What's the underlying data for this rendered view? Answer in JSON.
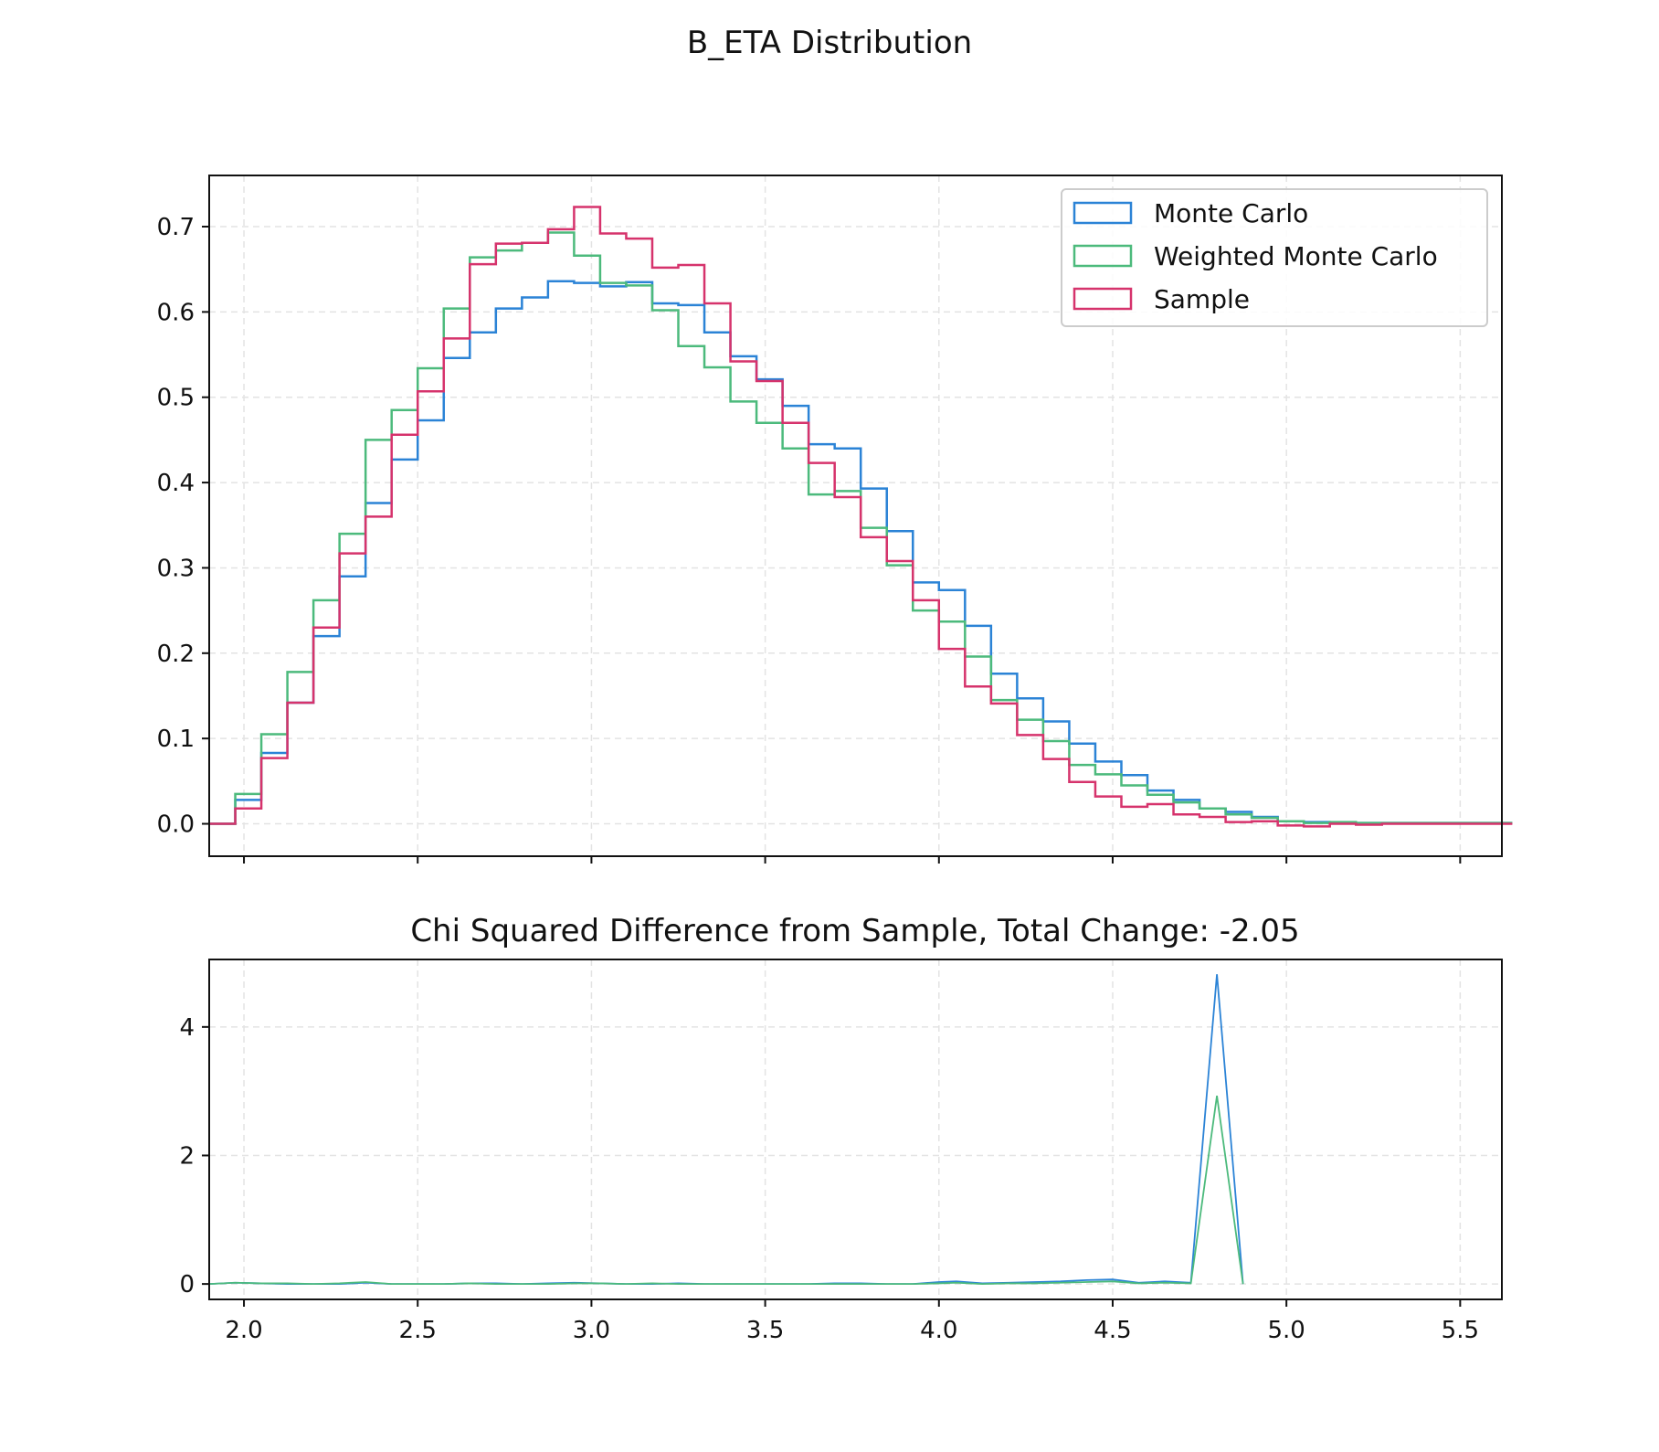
{
  "title": "B_ETA Distribution",
  "colors": {
    "monte_carlo": "#2b83d6",
    "weighted_monte_carlo": "#4cba7c",
    "sample": "#d6336c",
    "grid": "#e3e3e3"
  },
  "chart_data": [
    {
      "type": "histogram-step",
      "title": "",
      "xlim": [
        1.9,
        5.62
      ],
      "ylim": [
        -0.038,
        0.76
      ],
      "xticks": [
        2.0,
        2.5,
        3.0,
        3.5,
        4.0,
        4.5,
        5.0,
        5.5
      ],
      "yticks": [
        0.0,
        0.1,
        0.2,
        0.3,
        0.4,
        0.5,
        0.6,
        0.7
      ],
      "ytick_labels": [
        "0.0",
        "0.1",
        "0.2",
        "0.3",
        "0.4",
        "0.5",
        "0.6",
        "0.7"
      ],
      "grid": true,
      "legend_position": "top-right",
      "bin_start": 1.9,
      "bin_width": 0.075,
      "series": [
        {
          "name": "Monte Carlo",
          "key": "monte_carlo",
          "values": [
            0.0,
            0.028,
            0.083,
            0.142,
            0.22,
            0.29,
            0.376,
            0.427,
            0.473,
            0.546,
            0.576,
            0.604,
            0.617,
            0.636,
            0.634,
            0.63,
            0.635,
            0.61,
            0.608,
            0.576,
            0.548,
            0.521,
            0.49,
            0.445,
            0.44,
            0.393,
            0.343,
            0.283,
            0.274,
            0.232,
            0.176,
            0.147,
            0.12,
            0.094,
            0.073,
            0.057,
            0.039,
            0.028,
            0.018,
            0.014,
            0.008,
            0.003,
            0.002,
            0.001,
            0.001,
            0.001,
            0.001,
            0.001,
            0.001,
            0.001
          ]
        },
        {
          "name": "Weighted Monte Carlo",
          "key": "weighted_monte_carlo",
          "values": [
            0.0,
            0.035,
            0.105,
            0.178,
            0.262,
            0.34,
            0.45,
            0.485,
            0.534,
            0.604,
            0.664,
            0.672,
            0.681,
            0.693,
            0.666,
            0.634,
            0.631,
            0.602,
            0.56,
            0.535,
            0.495,
            0.47,
            0.44,
            0.386,
            0.39,
            0.347,
            0.303,
            0.25,
            0.237,
            0.196,
            0.145,
            0.122,
            0.097,
            0.069,
            0.058,
            0.045,
            0.034,
            0.025,
            0.018,
            0.011,
            0.007,
            0.003,
            0.001,
            0.002,
            0.001,
            0.001,
            0.001,
            0.001,
            0.001,
            0.001
          ]
        },
        {
          "name": "Sample",
          "key": "sample",
          "values": [
            0.0,
            0.018,
            0.077,
            0.142,
            0.23,
            0.317,
            0.36,
            0.456,
            0.507,
            0.569,
            0.656,
            0.68,
            0.681,
            0.697,
            0.723,
            0.692,
            0.686,
            0.652,
            0.655,
            0.61,
            0.542,
            0.519,
            0.47,
            0.423,
            0.383,
            0.336,
            0.308,
            0.262,
            0.205,
            0.161,
            0.141,
            0.104,
            0.076,
            0.049,
            0.032,
            0.02,
            0.023,
            0.011,
            0.008,
            0.002,
            0.003,
            -0.002,
            -0.003,
            0.0,
            -0.001,
            0.0,
            0.0,
            0.0,
            0.0,
            0.0
          ]
        }
      ]
    },
    {
      "type": "line",
      "title": "Chi Squared Difference from Sample, Total Change: -2.05",
      "xlim": [
        1.9,
        5.62
      ],
      "ylim": [
        -0.24,
        5.05
      ],
      "xticks": [
        2.0,
        2.5,
        3.0,
        3.5,
        4.0,
        4.5,
        5.0,
        5.5
      ],
      "xtick_labels": [
        "2.0",
        "2.5",
        "3.0",
        "3.5",
        "4.0",
        "4.5",
        "5.0",
        "5.5"
      ],
      "yticks": [
        0,
        2,
        4
      ],
      "ytick_labels": [
        "0",
        "2",
        "4"
      ],
      "grid": true,
      "x": [
        1.9,
        1.975,
        2.05,
        2.125,
        2.2,
        2.275,
        2.35,
        2.425,
        2.5,
        2.575,
        2.65,
        2.725,
        2.8,
        2.875,
        2.95,
        3.025,
        3.1,
        3.175,
        3.25,
        3.325,
        3.4,
        3.475,
        3.55,
        3.625,
        3.7,
        3.775,
        3.85,
        3.925,
        4.0,
        4.05,
        4.125,
        4.2,
        4.275,
        4.35,
        4.425,
        4.5,
        4.575,
        4.65,
        4.725,
        4.8,
        4.875
      ],
      "series": [
        {
          "key": "monte_carlo",
          "values": [
            0.0,
            0.02,
            0.01,
            0.0,
            0.0,
            0.0,
            0.02,
            0.0,
            0.0,
            0.0,
            0.01,
            0.01,
            0.0,
            0.01,
            0.02,
            0.01,
            0.0,
            0.0,
            0.01,
            0.0,
            0.0,
            0.0,
            0.0,
            0.0,
            0.01,
            0.01,
            0.0,
            0.0,
            0.03,
            0.04,
            0.01,
            0.02,
            0.03,
            0.04,
            0.06,
            0.07,
            0.02,
            0.04,
            0.02,
            4.82,
            0.0
          ]
        },
        {
          "key": "weighted_monte_carlo",
          "values": [
            0.0,
            0.02,
            0.01,
            0.01,
            0.0,
            0.01,
            0.03,
            0.0,
            0.0,
            0.0,
            0.01,
            0.0,
            0.0,
            0.0,
            0.01,
            0.01,
            0.0,
            0.01,
            0.0,
            0.0,
            0.0,
            0.0,
            0.0,
            0.0,
            0.0,
            0.0,
            0.0,
            0.0,
            0.01,
            0.02,
            0.0,
            0.01,
            0.01,
            0.02,
            0.03,
            0.04,
            0.01,
            0.02,
            0.01,
            2.93,
            0.0
          ]
        }
      ]
    }
  ]
}
